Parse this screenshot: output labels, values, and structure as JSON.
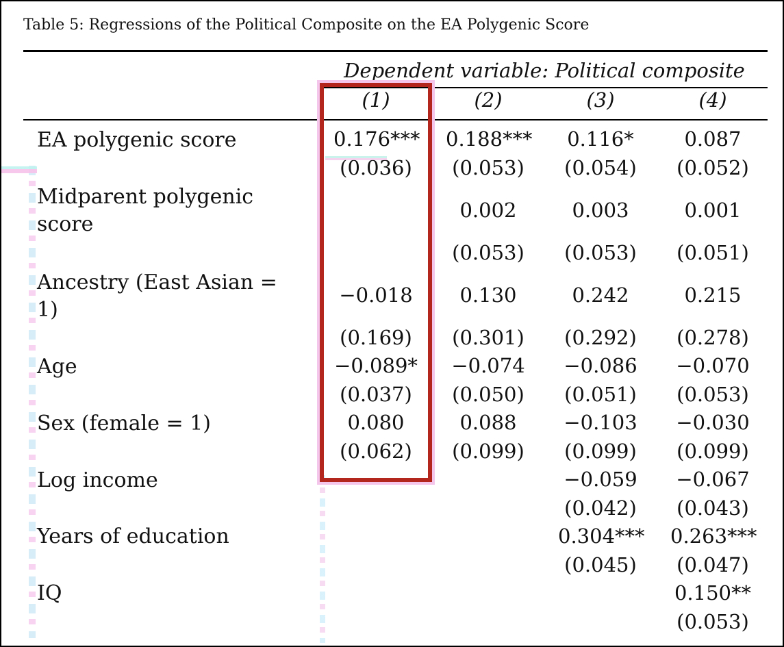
{
  "caption": "Table 5: Regressions of the Political Composite on the EA Polygenic Score",
  "dependent_variable_label": "Dependent variable: Political composite",
  "columns": [
    "(1)",
    "(2)",
    "(3)",
    "(4)"
  ],
  "rows": [
    {
      "label": "EA polygenic score",
      "coef": [
        "0.176***",
        "0.188***",
        "0.116*",
        "0.087"
      ],
      "se": [
        "(0.036)",
        "(0.053)",
        "(0.054)",
        "(0.052)"
      ]
    },
    {
      "label": "Midparent polygenic score",
      "coef": [
        "",
        "0.002",
        "0.003",
        "0.001"
      ],
      "se": [
        "",
        "(0.053)",
        "(0.053)",
        "(0.051)"
      ]
    },
    {
      "label": "Ancestry (East Asian = 1)",
      "coef": [
        "−0.018",
        "0.130",
        "0.242",
        "0.215"
      ],
      "se": [
        "(0.169)",
        "(0.301)",
        "(0.292)",
        "(0.278)"
      ]
    },
    {
      "label": "Age",
      "coef": [
        "−0.089*",
        "−0.074",
        "−0.086",
        "−0.070"
      ],
      "se": [
        "(0.037)",
        "(0.050)",
        "(0.051)",
        "(0.053)"
      ]
    },
    {
      "label": "Sex (female = 1)",
      "coef": [
        "0.080",
        "0.088",
        "−0.103",
        "−0.030"
      ],
      "se": [
        "(0.062)",
        "(0.099)",
        "(0.099)",
        "(0.099)"
      ]
    },
    {
      "label": "Log income",
      "coef": [
        "",
        "",
        "−0.059",
        "−0.067"
      ],
      "se": [
        "",
        "",
        "(0.042)",
        "(0.043)"
      ]
    },
    {
      "label": "Years of education",
      "coef": [
        "",
        "",
        "0.304***",
        "0.263***"
      ],
      "se": [
        "",
        "",
        "(0.045)",
        "(0.047)"
      ]
    },
    {
      "label": "IQ",
      "coef": [
        "",
        "",
        "",
        "0.150**"
      ],
      "se": [
        "",
        "",
        "",
        "(0.053)"
      ]
    }
  ],
  "highlight": {
    "column": "(1)",
    "color": "#b3261e"
  }
}
